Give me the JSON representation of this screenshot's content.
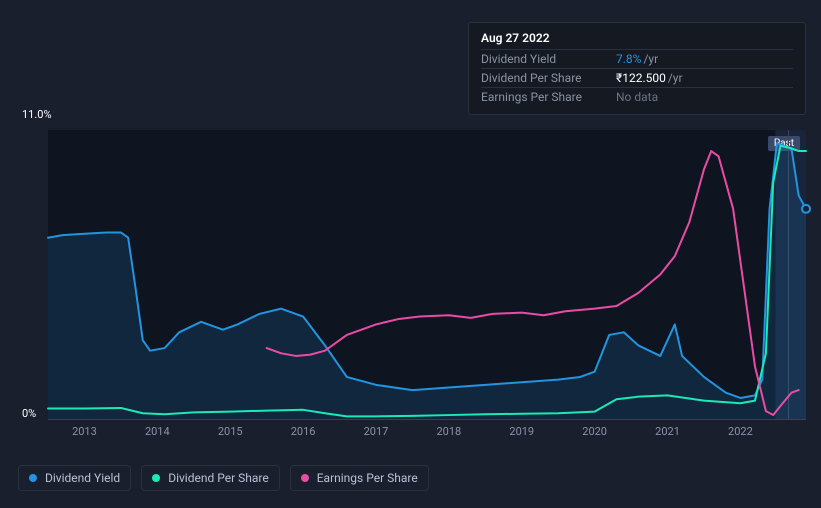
{
  "tooltip": {
    "date": "Aug 27 2022",
    "rows": [
      {
        "label": "Dividend Yield",
        "value": "7.8%",
        "suffix": "/yr",
        "value_color": "#2394df"
      },
      {
        "label": "Dividend Per Share",
        "value": "₹122.500",
        "suffix": "/yr",
        "value_color": "#ffffff"
      },
      {
        "label": "Earnings Per Share",
        "value": "No data",
        "suffix": "",
        "value_color": "#6a7185"
      }
    ]
  },
  "chart": {
    "type": "line",
    "background_color": "#0f1421",
    "past_region_color": "#18243a",
    "grid_border_color": "#3a4050",
    "y_axis": {
      "min_label": "0%",
      "max_label": "11.0%",
      "ymin": 0,
      "ymax": 11,
      "label_color": "#ffffff",
      "fontsize": 11
    },
    "x_axis": {
      "start": 2012.5,
      "end": 2022.9,
      "ticks": [
        2013,
        2014,
        2015,
        2016,
        2017,
        2018,
        2019,
        2020,
        2021,
        2022
      ],
      "label_color": "#8a92a6",
      "fontsize": 11
    },
    "past_label": "Past",
    "vertical_marker_x": 2022.65,
    "series": [
      {
        "name": "Dividend Yield",
        "color": "#2394df",
        "width": 2,
        "fill": true,
        "fill_opacity": 0.15,
        "points": [
          [
            2012.5,
            6.9
          ],
          [
            2012.7,
            7.0
          ],
          [
            2013.0,
            7.05
          ],
          [
            2013.3,
            7.1
          ],
          [
            2013.5,
            7.1
          ],
          [
            2013.6,
            6.9
          ],
          [
            2013.7,
            5.0
          ],
          [
            2013.8,
            3.0
          ],
          [
            2013.9,
            2.6
          ],
          [
            2014.1,
            2.7
          ],
          [
            2014.3,
            3.3
          ],
          [
            2014.6,
            3.7
          ],
          [
            2014.9,
            3.4
          ],
          [
            2015.1,
            3.6
          ],
          [
            2015.4,
            4.0
          ],
          [
            2015.7,
            4.2
          ],
          [
            2016.0,
            3.9
          ],
          [
            2016.3,
            2.8
          ],
          [
            2016.6,
            1.6
          ],
          [
            2017.0,
            1.3
          ],
          [
            2017.5,
            1.1
          ],
          [
            2018.0,
            1.2
          ],
          [
            2018.5,
            1.3
          ],
          [
            2019.0,
            1.4
          ],
          [
            2019.5,
            1.5
          ],
          [
            2019.8,
            1.6
          ],
          [
            2020.0,
            1.8
          ],
          [
            2020.2,
            3.2
          ],
          [
            2020.4,
            3.3
          ],
          [
            2020.6,
            2.8
          ],
          [
            2020.9,
            2.4
          ],
          [
            2021.1,
            3.6
          ],
          [
            2021.2,
            2.4
          ],
          [
            2021.5,
            1.6
          ],
          [
            2021.8,
            1.0
          ],
          [
            2022.0,
            0.8
          ],
          [
            2022.2,
            0.9
          ],
          [
            2022.3,
            1.5
          ],
          [
            2022.4,
            8.0
          ],
          [
            2022.5,
            10.5
          ],
          [
            2022.7,
            10.3
          ],
          [
            2022.8,
            8.5
          ],
          [
            2022.9,
            8.0
          ]
        ]
      },
      {
        "name": "Dividend Per Share",
        "color": "#1de9b6",
        "width": 2,
        "fill": false,
        "points": [
          [
            2012.5,
            0.4
          ],
          [
            2013.0,
            0.4
          ],
          [
            2013.5,
            0.42
          ],
          [
            2013.8,
            0.22
          ],
          [
            2014.1,
            0.18
          ],
          [
            2014.5,
            0.25
          ],
          [
            2015.0,
            0.28
          ],
          [
            2015.5,
            0.32
          ],
          [
            2016.0,
            0.35
          ],
          [
            2016.3,
            0.22
          ],
          [
            2016.6,
            0.1
          ],
          [
            2017.0,
            0.1
          ],
          [
            2017.5,
            0.12
          ],
          [
            2018.0,
            0.15
          ],
          [
            2018.5,
            0.18
          ],
          [
            2019.0,
            0.2
          ],
          [
            2019.5,
            0.22
          ],
          [
            2020.0,
            0.28
          ],
          [
            2020.3,
            0.75
          ],
          [
            2020.6,
            0.85
          ],
          [
            2021.0,
            0.9
          ],
          [
            2021.5,
            0.7
          ],
          [
            2022.0,
            0.6
          ],
          [
            2022.2,
            0.7
          ],
          [
            2022.35,
            2.5
          ],
          [
            2022.45,
            9.0
          ],
          [
            2022.55,
            10.4
          ],
          [
            2022.7,
            10.3
          ],
          [
            2022.8,
            10.2
          ],
          [
            2022.9,
            10.2
          ]
        ]
      },
      {
        "name": "Earnings Per Share",
        "color": "#e94ca4",
        "width": 2,
        "fill": false,
        "points": [
          [
            2015.5,
            2.7
          ],
          [
            2015.7,
            2.5
          ],
          [
            2015.9,
            2.4
          ],
          [
            2016.1,
            2.45
          ],
          [
            2016.3,
            2.6
          ],
          [
            2016.6,
            3.2
          ],
          [
            2017.0,
            3.6
          ],
          [
            2017.3,
            3.8
          ],
          [
            2017.6,
            3.9
          ],
          [
            2018.0,
            3.95
          ],
          [
            2018.3,
            3.85
          ],
          [
            2018.6,
            4.0
          ],
          [
            2019.0,
            4.05
          ],
          [
            2019.3,
            3.95
          ],
          [
            2019.6,
            4.1
          ],
          [
            2020.0,
            4.2
          ],
          [
            2020.3,
            4.3
          ],
          [
            2020.6,
            4.8
          ],
          [
            2020.9,
            5.5
          ],
          [
            2021.1,
            6.2
          ],
          [
            2021.3,
            7.5
          ],
          [
            2021.5,
            9.5
          ],
          [
            2021.6,
            10.2
          ],
          [
            2021.7,
            10.0
          ],
          [
            2021.9,
            8.0
          ],
          [
            2022.05,
            5.0
          ],
          [
            2022.2,
            2.0
          ],
          [
            2022.35,
            0.3
          ],
          [
            2022.45,
            0.15
          ],
          [
            2022.55,
            0.5
          ],
          [
            2022.7,
            1.0
          ],
          [
            2022.8,
            1.1
          ]
        ]
      }
    ]
  },
  "legend": {
    "items": [
      {
        "label": "Dividend Yield",
        "color": "#2394df"
      },
      {
        "label": "Dividend Per Share",
        "color": "#1de9b6"
      },
      {
        "label": "Earnings Per Share",
        "color": "#e94ca4"
      }
    ],
    "border_color": "#2a3040",
    "text_color": "#b8c0d4",
    "fontsize": 12
  }
}
